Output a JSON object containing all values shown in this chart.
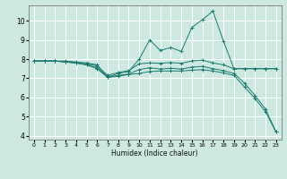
{
  "xlabel": "Humidex (Indice chaleur)",
  "ylabel": "",
  "xlim": [
    -0.5,
    23.5
  ],
  "ylim": [
    3.8,
    10.8
  ],
  "background_color": "#cce8e0",
  "grid_color": "#ffffff",
  "line_color": "#1a7a6e",
  "xticks": [
    0,
    1,
    2,
    3,
    4,
    5,
    6,
    7,
    8,
    9,
    10,
    11,
    12,
    13,
    14,
    15,
    16,
    17,
    18,
    19,
    20,
    21,
    22,
    23
  ],
  "yticks": [
    4,
    5,
    6,
    7,
    8,
    9,
    10
  ],
  "series": [
    {
      "x": [
        0,
        1,
        2,
        3,
        4,
        5,
        6,
        7,
        8,
        9,
        10,
        11,
        12,
        13,
        14,
        15,
        16,
        17,
        18,
        19,
        20,
        21,
        22,
        23
      ],
      "y": [
        7.9,
        7.9,
        7.9,
        7.9,
        7.85,
        7.8,
        7.7,
        7.05,
        7.25,
        7.35,
        8.0,
        9.0,
        8.45,
        8.6,
        8.4,
        9.65,
        10.05,
        10.5,
        8.95,
        7.5,
        7.5,
        7.5,
        7.5,
        7.5
      ]
    },
    {
      "x": [
        0,
        1,
        2,
        3,
        4,
        5,
        6,
        7,
        8,
        9,
        10,
        11,
        12,
        13,
        14,
        15,
        16,
        17,
        18,
        19,
        20,
        21,
        22,
        23
      ],
      "y": [
        7.9,
        7.9,
        7.9,
        7.85,
        7.8,
        7.75,
        7.65,
        7.15,
        7.3,
        7.4,
        7.75,
        7.8,
        7.78,
        7.82,
        7.78,
        7.9,
        7.95,
        7.8,
        7.7,
        7.5,
        7.5,
        7.5,
        7.5,
        7.5
      ]
    },
    {
      "x": [
        0,
        1,
        2,
        3,
        4,
        5,
        6,
        7,
        8,
        9,
        10,
        11,
        12,
        13,
        14,
        15,
        16,
        17,
        18,
        19,
        20,
        21,
        22,
        23
      ],
      "y": [
        7.9,
        7.9,
        7.9,
        7.85,
        7.8,
        7.7,
        7.5,
        7.05,
        7.1,
        7.2,
        7.25,
        7.35,
        7.38,
        7.38,
        7.38,
        7.42,
        7.45,
        7.38,
        7.28,
        7.15,
        6.55,
        5.95,
        5.25,
        4.2
      ]
    },
    {
      "x": [
        0,
        1,
        2,
        3,
        4,
        5,
        6,
        7,
        8,
        9,
        10,
        11,
        12,
        13,
        14,
        15,
        16,
        17,
        18,
        19,
        20,
        21,
        22,
        23
      ],
      "y": [
        7.9,
        7.9,
        7.9,
        7.85,
        7.8,
        7.7,
        7.55,
        7.05,
        7.15,
        7.22,
        7.45,
        7.55,
        7.48,
        7.52,
        7.48,
        7.58,
        7.62,
        7.5,
        7.4,
        7.25,
        6.75,
        6.1,
        5.4,
        4.2
      ]
    }
  ]
}
